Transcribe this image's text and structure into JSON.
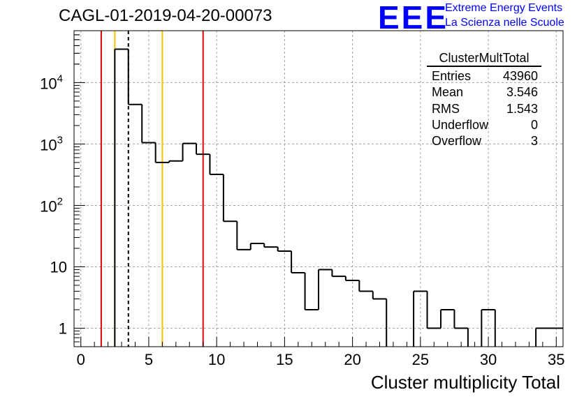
{
  "title": "CAGL-01-2019-04-20-00073",
  "logo": {
    "mark": "EEE",
    "line1": "Extreme Energy Events",
    "line2": "La Scienza nelle Scuole"
  },
  "stats": {
    "title": "ClusterMultTotal",
    "rows": [
      {
        "label": "Entries",
        "value": "43960"
      },
      {
        "label": "Mean",
        "value": "3.546"
      },
      {
        "label": "RMS",
        "value": "1.543"
      },
      {
        "label": "Underflow",
        "value": "0"
      },
      {
        "label": "Overflow",
        "value": "3"
      }
    ]
  },
  "chart_data": {
    "type": "histogram",
    "xlabel": "Cluster multiplicity Total",
    "ylabel": "",
    "xlim": [
      -0.5,
      35.5
    ],
    "ylim": [
      0.5,
      70000
    ],
    "yscale": "log",
    "grid": true,
    "x_ticks": [
      "0",
      "5",
      "10",
      "15",
      "20",
      "25",
      "30",
      "35"
    ],
    "y_ticks": [
      {
        "value": 1,
        "label": "1"
      },
      {
        "value": 10,
        "label": "10"
      },
      {
        "value": 100,
        "label": "10^2"
      },
      {
        "value": 1000,
        "label": "10^3"
      },
      {
        "value": 10000,
        "label": "10^4"
      }
    ],
    "bin_edges_start": -0.5,
    "bin_width": 1,
    "counts": [
      0,
      0,
      0,
      35000,
      4400,
      1050,
      500,
      530,
      1020,
      680,
      320,
      55,
      19,
      24,
      21,
      18,
      8,
      2,
      9,
      7,
      6,
      4,
      3,
      0,
      0,
      4,
      1,
      2,
      1,
      0,
      2,
      0,
      0,
      0,
      1,
      1
    ],
    "vlines": [
      {
        "x": 1.5,
        "color": "#dd0000",
        "style": "solid"
      },
      {
        "x": 2.5,
        "color": "#f5c400",
        "style": "solid"
      },
      {
        "x": 3.5,
        "color": "#000000",
        "style": "dashed"
      },
      {
        "x": 6.0,
        "color": "#f5c400",
        "style": "solid"
      },
      {
        "x": 9.0,
        "color": "#dd0000",
        "style": "solid"
      }
    ]
  }
}
